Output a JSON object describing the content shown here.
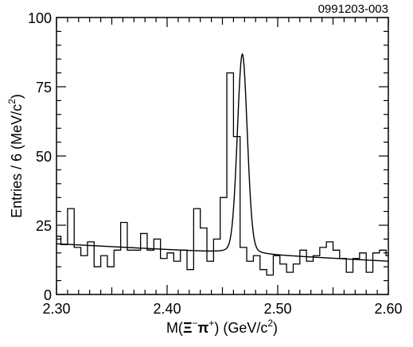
{
  "chart_data": {
    "type": "bar",
    "style": "step-histogram-with-fit-curve",
    "figure_id": "0991203-003",
    "xlabel": {
      "base": "M(",
      "sym": "Ξ",
      "sup1": "−",
      "pi": "π",
      "sup2": "+",
      "rest": ") (GeV/c",
      "sup3": "2",
      "close": ")"
    },
    "ylabel": {
      "base": "Entries / 6 (MeV/c",
      "sup": "2",
      "close": ")"
    },
    "xlim": [
      2.3,
      2.6
    ],
    "ylim": [
      0,
      100
    ],
    "x_ticks": [
      "2.30",
      "2.40",
      "2.50",
      "2.60"
    ],
    "y_ticks": [
      "0",
      "25",
      "50",
      "75",
      "100"
    ],
    "bin_width": 0.006,
    "bin_start": 2.298,
    "values": [
      21,
      18,
      31,
      17,
      14,
      19,
      10,
      14,
      10,
      16,
      26,
      16,
      16,
      22,
      16,
      20,
      13,
      15,
      12,
      16,
      9,
      31,
      24,
      12,
      20,
      35,
      80,
      57,
      17,
      12,
      14,
      9,
      7,
      14,
      11,
      8,
      11,
      16,
      12,
      14,
      17,
      19,
      16,
      13,
      8,
      13,
      15,
      8,
      15,
      16,
      14
    ],
    "fit_curve": {
      "background": {
        "a": 18.3,
        "slope": -21.0,
        "x0": 2.3
      },
      "peak": {
        "mean": 2.468,
        "sigma": 0.0045,
        "amplitude": 63,
        "gamma": 0.011,
        "gamma_amplitude": 9
      }
    },
    "grid": false,
    "legend": "none"
  }
}
